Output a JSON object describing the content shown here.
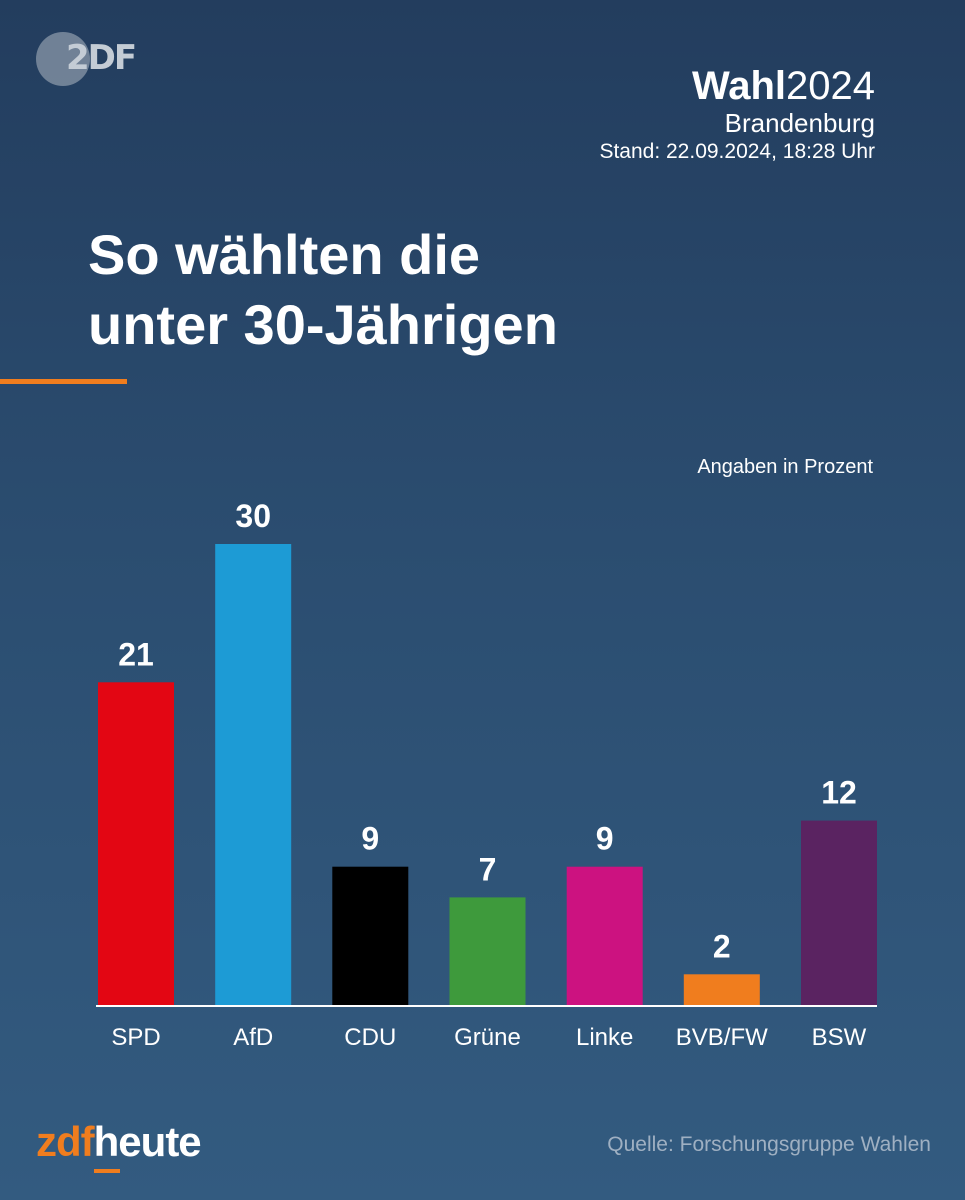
{
  "brand": {
    "logo_text": "2DF"
  },
  "header": {
    "title_bold": "Wahl",
    "title_year": "2024",
    "region": "Brandenburg",
    "stand": "Stand: 22.09.2024, 18:28 Uhr"
  },
  "headline": {
    "line1": "So wählten die",
    "line2": "unter 30-Jährigen"
  },
  "units_label": "Angaben in Prozent",
  "chart_data": {
    "type": "bar",
    "title": "So wählten die unter 30-Jährigen",
    "ylabel": "Angaben in Prozent",
    "categories": [
      "SPD",
      "AfD",
      "CDU",
      "Grüne",
      "Linke",
      "BVB/FW",
      "BSW"
    ],
    "values": [
      21,
      30,
      9,
      7,
      9,
      2,
      12
    ],
    "value_labels": [
      "21",
      "30",
      "9",
      "7",
      "9",
      "2",
      "12"
    ],
    "colors": [
      "#e30613",
      "#1d9bd5",
      "#000000",
      "#3e9a3c",
      "#cc1280",
      "#f07d1e",
      "#5a2361"
    ],
    "ylim": [
      0,
      30
    ],
    "grid": false
  },
  "footer": {
    "logo_zdf": "zdf",
    "logo_heute": "heute",
    "source": "Quelle: Forschungsgruppe Wahlen"
  }
}
